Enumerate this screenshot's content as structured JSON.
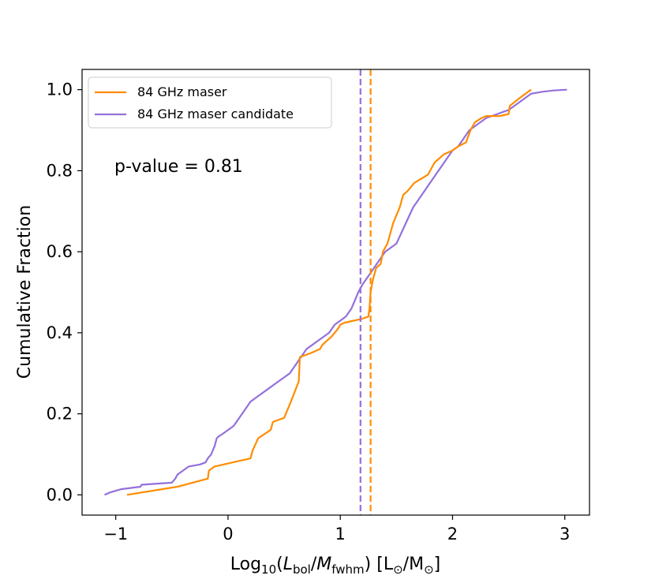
{
  "chart_data": {
    "type": "line",
    "title": "",
    "xlabel": "Log10(Lbol/Mfwhm) [L⊙/M⊙]",
    "xlabel_parts": {
      "prefix": "Log",
      "sub10": "10",
      "open": "(",
      "L": "L",
      "sub_bol": "bol",
      "slash": "/",
      "M": "M",
      "sub_fwhm": "fwhm",
      "close": ") [L",
      "sun1": "⊙",
      "mid": "/M",
      "sun2": "⊙",
      "end": "]"
    },
    "ylabel": "Cumulative Fraction",
    "xlim": [
      -1.3,
      3.22
    ],
    "ylim": [
      -0.05,
      1.05
    ],
    "xticks": [
      -1,
      0,
      1,
      2,
      3
    ],
    "xtick_labels": [
      "−1",
      "0",
      "1",
      "2",
      "3"
    ],
    "yticks": [
      0.0,
      0.2,
      0.4,
      0.6,
      0.8,
      1.0
    ],
    "ytick_labels": [
      "0.0",
      "0.2",
      "0.4",
      "0.6",
      "0.8",
      "1.0"
    ],
    "annotation": "p-value = 0.81",
    "legend_position": "top-left",
    "series": [
      {
        "name": "84 GHz maser",
        "color": "#ff8c00",
        "median": 1.27,
        "x": [
          -0.9,
          -0.45,
          -0.18,
          -0.17,
          -0.12,
          0.2,
          0.22,
          0.27,
          0.38,
          0.4,
          0.5,
          0.56,
          0.63,
          0.64,
          0.74,
          0.82,
          0.84,
          0.88,
          0.92,
          0.95,
          0.98,
          1.0,
          1.04,
          1.12,
          1.2,
          1.25,
          1.26,
          1.27,
          1.29,
          1.32,
          1.36,
          1.38,
          1.42,
          1.45,
          1.47,
          1.5,
          1.53,
          1.56,
          1.6,
          1.66,
          1.72,
          1.78,
          1.84,
          1.88,
          1.92,
          2.0,
          2.05,
          2.12,
          2.16,
          2.2,
          2.26,
          2.3,
          2.36,
          2.42,
          2.5,
          2.51,
          2.6,
          2.7
        ],
        "y": [
          0.0,
          0.02,
          0.04,
          0.06,
          0.07,
          0.09,
          0.11,
          0.14,
          0.16,
          0.18,
          0.19,
          0.23,
          0.28,
          0.34,
          0.35,
          0.36,
          0.37,
          0.38,
          0.39,
          0.4,
          0.41,
          0.42,
          0.425,
          0.43,
          0.435,
          0.44,
          0.46,
          0.5,
          0.53,
          0.56,
          0.57,
          0.6,
          0.62,
          0.65,
          0.67,
          0.69,
          0.71,
          0.74,
          0.75,
          0.77,
          0.78,
          0.79,
          0.82,
          0.83,
          0.84,
          0.85,
          0.86,
          0.87,
          0.9,
          0.92,
          0.93,
          0.935,
          0.935,
          0.935,
          0.94,
          0.96,
          0.98,
          1.0
        ]
      },
      {
        "name": "84 GHz maser candidate",
        "color": "#9370db",
        "median": 1.18,
        "x": [
          -1.1,
          -1.05,
          -0.95,
          -0.78,
          -0.77,
          -0.5,
          -0.47,
          -0.45,
          -0.4,
          -0.35,
          -0.25,
          -0.2,
          -0.18,
          -0.15,
          -0.12,
          -0.1,
          -0.08,
          -0.05,
          0.0,
          0.05,
          0.1,
          0.15,
          0.2,
          0.25,
          0.3,
          0.35,
          0.4,
          0.45,
          0.5,
          0.55,
          0.6,
          0.65,
          0.7,
          0.75,
          0.8,
          0.85,
          0.9,
          0.95,
          1.0,
          1.05,
          1.1,
          1.13,
          1.16,
          1.2,
          1.25,
          1.3,
          1.35,
          1.4,
          1.45,
          1.5,
          1.55,
          1.6,
          1.65,
          1.7,
          1.75,
          1.8,
          1.85,
          1.9,
          1.95,
          2.0,
          2.05,
          2.1,
          2.15,
          2.2,
          2.3,
          2.4,
          2.5,
          2.55,
          2.6,
          2.65,
          2.7,
          2.8,
          2.9,
          3.02
        ],
        "y": [
          0.0,
          0.006,
          0.014,
          0.02,
          0.025,
          0.03,
          0.04,
          0.05,
          0.06,
          0.07,
          0.075,
          0.08,
          0.09,
          0.1,
          0.12,
          0.14,
          0.145,
          0.15,
          0.16,
          0.17,
          0.19,
          0.21,
          0.23,
          0.24,
          0.25,
          0.26,
          0.27,
          0.28,
          0.29,
          0.3,
          0.32,
          0.34,
          0.36,
          0.37,
          0.38,
          0.39,
          0.4,
          0.42,
          0.43,
          0.44,
          0.46,
          0.48,
          0.5,
          0.52,
          0.54,
          0.56,
          0.58,
          0.6,
          0.61,
          0.62,
          0.65,
          0.68,
          0.71,
          0.73,
          0.75,
          0.77,
          0.79,
          0.81,
          0.83,
          0.85,
          0.86,
          0.88,
          0.9,
          0.91,
          0.93,
          0.94,
          0.95,
          0.96,
          0.97,
          0.98,
          0.99,
          0.995,
          0.998,
          1.0
        ]
      }
    ]
  }
}
